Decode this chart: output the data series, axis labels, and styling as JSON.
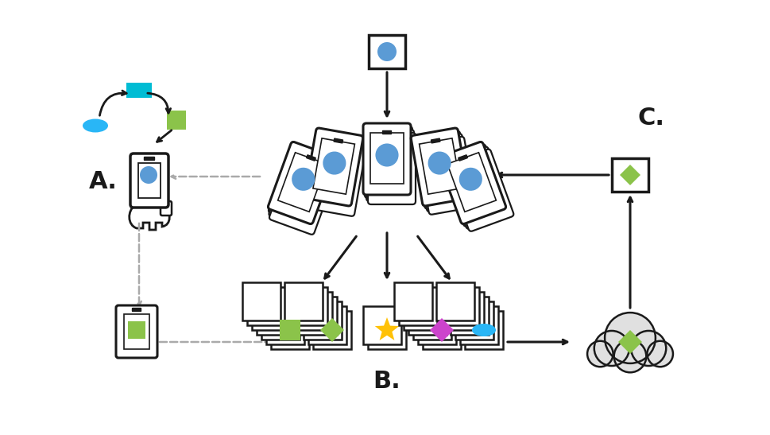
{
  "bg_color": "#ffffff",
  "label_A": "A.",
  "label_B": "B.",
  "label_C": "C.",
  "color_teal": "#00BCD4",
  "color_cyan": "#29B6F6",
  "color_green": "#8BC34A",
  "color_blue": "#5B9BD5",
  "color_purple": "#CC44CC",
  "color_yellow": "#FFC107",
  "color_gray": "#AAAAAA",
  "color_dark": "#1a1a1a",
  "color_light_gray": "#cccccc"
}
